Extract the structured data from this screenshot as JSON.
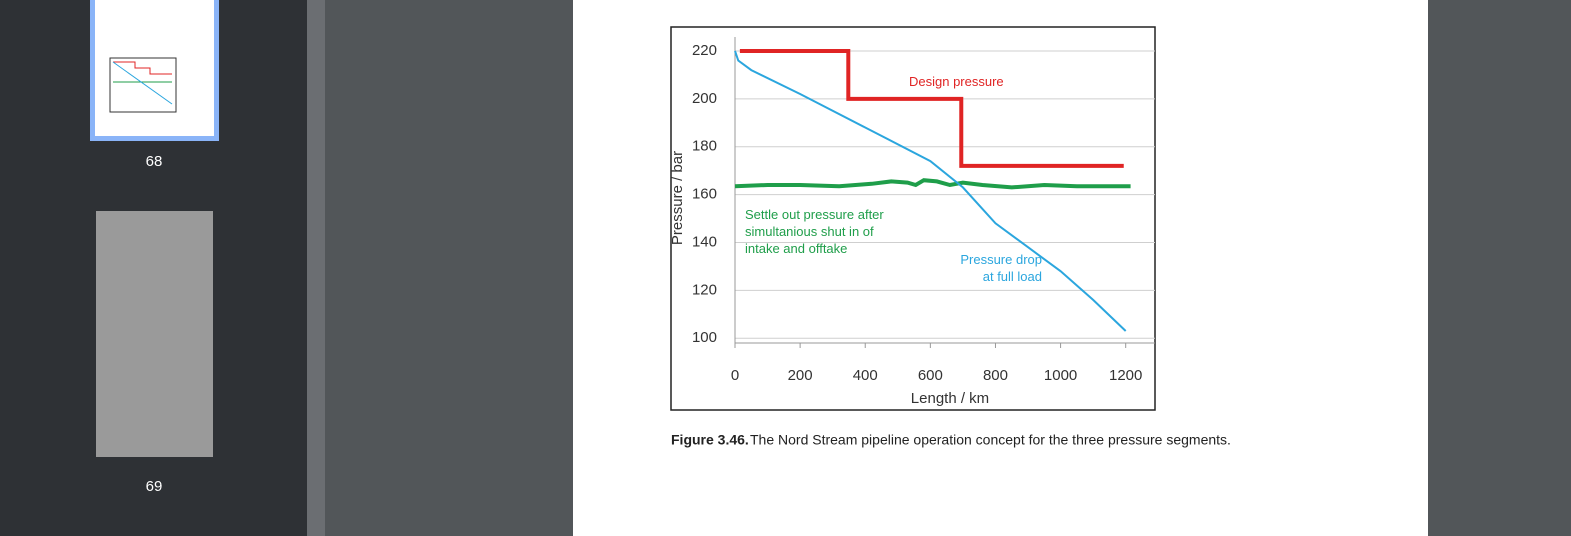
{
  "sidebar": {
    "pages": [
      "68",
      "69"
    ]
  },
  "chart_data": {
    "type": "line",
    "xlabel": "Length / km",
    "ylabel": "Pressure / bar",
    "xlim": [
      0,
      1290
    ],
    "ylim": [
      98,
      230
    ],
    "xticks": [
      0,
      200,
      400,
      600,
      800,
      1000,
      1200
    ],
    "yticks": [
      100,
      120,
      140,
      160,
      180,
      200,
      220
    ],
    "grid": true,
    "series": [
      {
        "name": "Design pressure",
        "color": "#e02424",
        "x": [
          15,
          348,
          348,
          695,
          695,
          1194
        ],
        "values": [
          220,
          220,
          200,
          200,
          172,
          172
        ]
      },
      {
        "name": "Settle out pressure after simultanious shut in of intake and offtake",
        "color": "#1f9e4a",
        "x": [
          0,
          100,
          200,
          320,
          420,
          480,
          530,
          555,
          580,
          620,
          660,
          700,
          760,
          850,
          950,
          1050,
          1150,
          1215
        ],
        "values": [
          163.5,
          164,
          164,
          163.5,
          164.5,
          165.5,
          165,
          164,
          166,
          165.5,
          164,
          165,
          164,
          163,
          164,
          163.5,
          163.5,
          163.5
        ]
      },
      {
        "name": "Pressure drop at full load",
        "color": "#2ba6de",
        "x": [
          0,
          10,
          50,
          200,
          400,
          600,
          700,
          800,
          900,
          1000,
          1100,
          1200
        ],
        "values": [
          220,
          216,
          212,
          202,
          188,
          174,
          163,
          148,
          138,
          128,
          116,
          103
        ]
      }
    ]
  },
  "caption": {
    "label": "Figure 3.46.",
    "text": "The Nord Stream pipeline operation concept for the three pressure segments."
  }
}
